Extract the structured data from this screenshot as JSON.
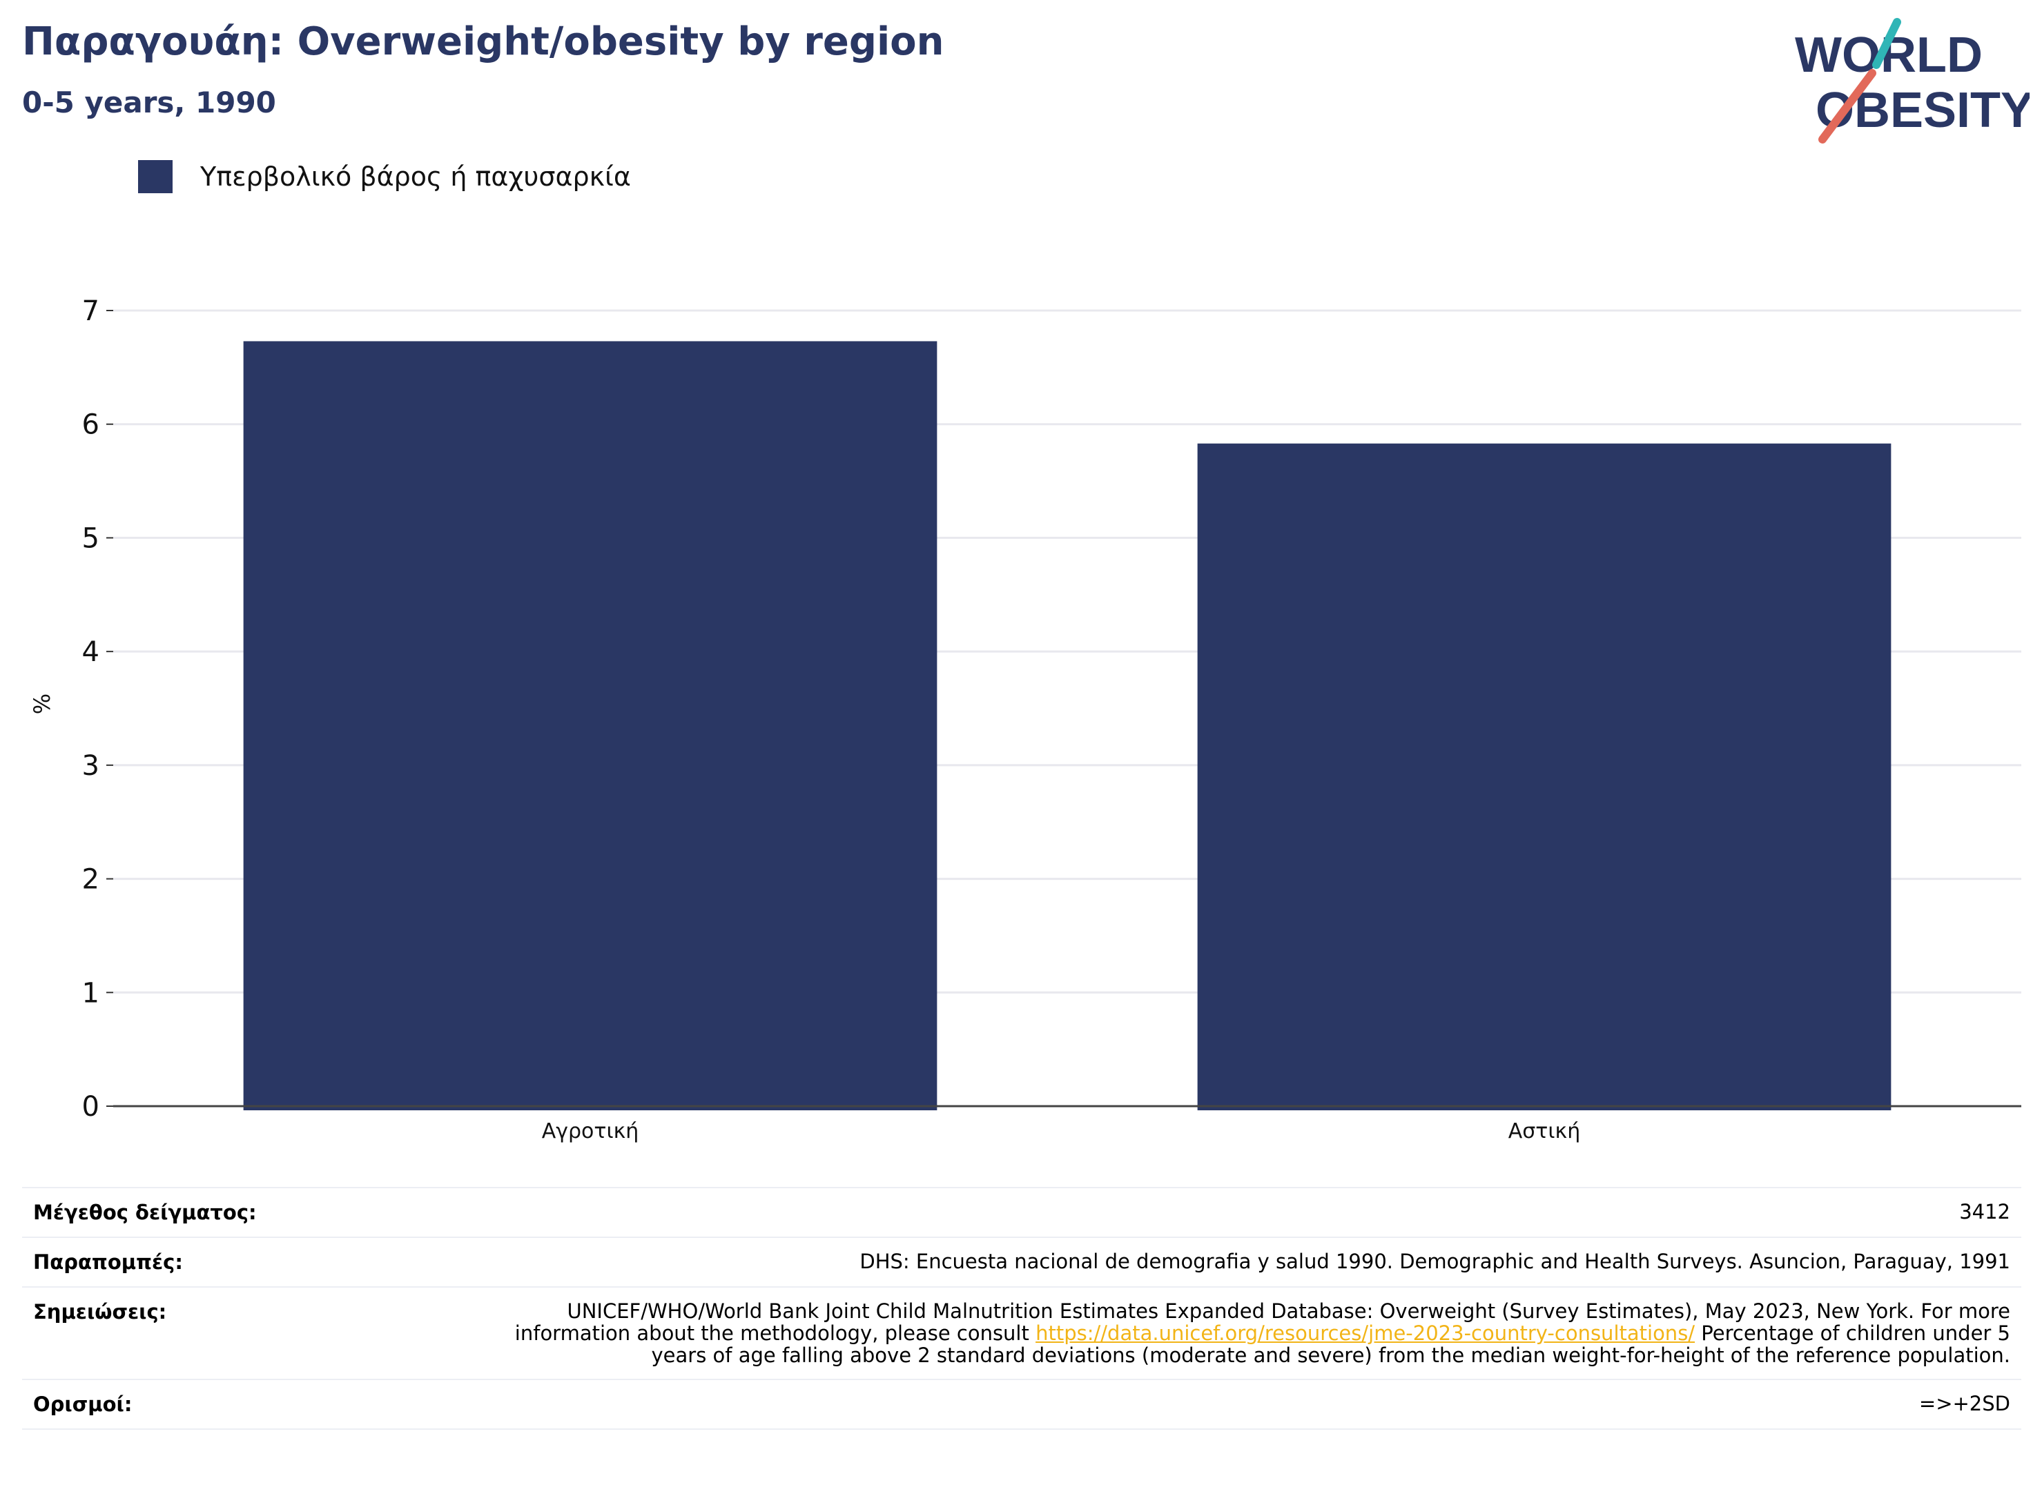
{
  "header": {
    "title": "Παραγουάη: Overweight/obesity by region",
    "subtitle": "0-5 years, 1990"
  },
  "logo": {
    "line1": "WORLD",
    "line2": "OBESITY",
    "colors": {
      "navy": "#2a3764",
      "teal": "#2fb5b6",
      "coral": "#e2695a"
    }
  },
  "legend": {
    "label": "Υπερβολικό βάρος ή παχυσαρκία",
    "color": "#2a3764"
  },
  "chart_data": {
    "type": "bar",
    "categories": [
      "Αγροτική",
      "Αστική"
    ],
    "series": [
      {
        "name": "Υπερβολικό βάρος ή παχυσαρκία",
        "values": [
          6.73,
          5.83
        ],
        "color": "#2a3764"
      }
    ],
    "ylabel": "%",
    "ylim": [
      0,
      7
    ],
    "yticks": [
      0,
      1,
      2,
      3,
      4,
      5,
      6,
      7
    ],
    "grid": true,
    "legend_position": "top-left"
  },
  "meta": {
    "sample_size_label": "Μέγεθος δείγματος:",
    "sample_size_value": "3412",
    "references_label": "Παραπομπές:",
    "references_value": "DHS: Encuesta nacional de demografia y salud 1990. Demographic and Health Surveys. Asuncion, Paraguay, 1991",
    "notes_label": "Σημειώσεις:",
    "notes_text_1": "UNICEF/WHO/World Bank Joint Child Malnutrition Estimates Expanded Database: Overweight (Survey Estimates), May 2023, New York. For more information about the methodology, please consult ",
    "notes_link": "https://data.unicef.org/resources/jme-2023-country-consultations/",
    "notes_text_2": " Percentage of children under 5 years of age falling above 2 standard deviations (moderate and severe) from the median weight-for-height of the reference population.",
    "definitions_label": "Ορισμοί:",
    "definitions_value": "=>+2SD"
  }
}
